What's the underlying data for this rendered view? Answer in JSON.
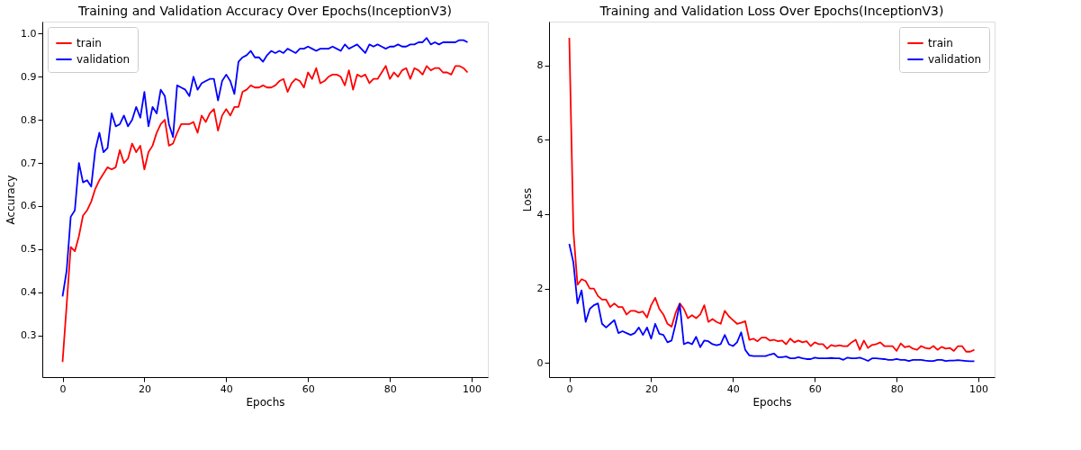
{
  "chart_data": [
    {
      "type": "line",
      "title": "Training and Validation Accuracy Over Epochs(InceptionV3)",
      "xlabel": "Epochs",
      "ylabel": "Accuracy",
      "x": [
        0,
        1,
        2,
        3,
        4,
        5,
        6,
        7,
        8,
        9,
        10,
        11,
        12,
        13,
        14,
        15,
        16,
        17,
        18,
        19,
        20,
        21,
        22,
        23,
        24,
        25,
        26,
        27,
        28,
        29,
        30,
        31,
        32,
        33,
        34,
        35,
        36,
        37,
        38,
        39,
        40,
        41,
        42,
        43,
        44,
        45,
        46,
        47,
        48,
        49,
        50,
        51,
        52,
        53,
        54,
        55,
        56,
        57,
        58,
        59,
        60,
        61,
        62,
        63,
        64,
        65,
        66,
        67,
        68,
        69,
        70,
        71,
        72,
        73,
        74,
        75,
        76,
        77,
        78,
        79,
        80,
        81,
        82,
        83,
        84,
        85,
        86,
        87,
        88,
        89,
        90,
        91,
        92,
        93,
        94,
        95,
        96,
        97,
        98,
        99
      ],
      "series": [
        {
          "name": "train",
          "color": "#ff0000",
          "values": [
            0.238,
            0.37,
            0.505,
            0.495,
            0.53,
            0.578,
            0.59,
            0.61,
            0.64,
            0.66,
            0.675,
            0.69,
            0.685,
            0.69,
            0.73,
            0.7,
            0.71,
            0.745,
            0.725,
            0.74,
            0.685,
            0.725,
            0.74,
            0.77,
            0.79,
            0.8,
            0.74,
            0.745,
            0.77,
            0.79,
            0.79,
            0.79,
            0.795,
            0.77,
            0.81,
            0.795,
            0.815,
            0.825,
            0.775,
            0.81,
            0.825,
            0.81,
            0.83,
            0.83,
            0.865,
            0.87,
            0.88,
            0.875,
            0.875,
            0.88,
            0.875,
            0.875,
            0.88,
            0.89,
            0.895,
            0.865,
            0.885,
            0.895,
            0.89,
            0.875,
            0.91,
            0.895,
            0.92,
            0.885,
            0.89,
            0.9,
            0.905,
            0.905,
            0.9,
            0.88,
            0.915,
            0.87,
            0.905,
            0.9,
            0.905,
            0.885,
            0.895,
            0.895,
            0.91,
            0.925,
            0.895,
            0.91,
            0.9,
            0.915,
            0.92,
            0.895,
            0.92,
            0.915,
            0.905,
            0.925,
            0.915,
            0.92,
            0.92,
            0.91,
            0.91,
            0.905,
            0.925,
            0.925,
            0.92,
            0.91
          ]
        },
        {
          "name": "validation",
          "color": "#0000ff",
          "values": [
            0.39,
            0.45,
            0.575,
            0.59,
            0.7,
            0.655,
            0.66,
            0.645,
            0.73,
            0.77,
            0.725,
            0.735,
            0.815,
            0.785,
            0.79,
            0.81,
            0.785,
            0.8,
            0.83,
            0.805,
            0.865,
            0.785,
            0.83,
            0.815,
            0.87,
            0.855,
            0.79,
            0.76,
            0.88,
            0.875,
            0.87,
            0.855,
            0.9,
            0.87,
            0.885,
            0.89,
            0.895,
            0.895,
            0.845,
            0.89,
            0.905,
            0.89,
            0.86,
            0.935,
            0.945,
            0.95,
            0.96,
            0.945,
            0.945,
            0.935,
            0.95,
            0.96,
            0.955,
            0.96,
            0.955,
            0.965,
            0.96,
            0.955,
            0.965,
            0.965,
            0.97,
            0.965,
            0.96,
            0.965,
            0.965,
            0.965,
            0.97,
            0.965,
            0.96,
            0.975,
            0.965,
            0.97,
            0.975,
            0.965,
            0.955,
            0.975,
            0.97,
            0.975,
            0.97,
            0.965,
            0.97,
            0.97,
            0.975,
            0.97,
            0.97,
            0.975,
            0.975,
            0.98,
            0.98,
            0.99,
            0.975,
            0.98,
            0.975,
            0.98,
            0.98,
            0.98,
            0.98,
            0.985,
            0.985,
            0.98
          ]
        }
      ],
      "xlim": [
        -4.95,
        103.95
      ],
      "xticks": [
        0,
        20,
        40,
        60,
        80,
        100
      ],
      "ylim": [
        0.203,
        1.028
      ],
      "yticks": [
        0.3,
        0.4,
        0.5,
        0.6,
        0.7,
        0.8,
        0.9,
        {
          "value": 1.0,
          "label": "1.0"
        }
      ],
      "grid": false,
      "legend": "top left",
      "line_style": "solid",
      "marker": "none"
    },
    {
      "type": "line",
      "title": "Training and Validation Loss Over Epochs(InceptionV3)",
      "xlabel": "Epochs",
      "ylabel": "Loss",
      "x": [
        0,
        1,
        2,
        3,
        4,
        5,
        6,
        7,
        8,
        9,
        10,
        11,
        12,
        13,
        14,
        15,
        16,
        17,
        18,
        19,
        20,
        21,
        22,
        23,
        24,
        25,
        26,
        27,
        28,
        29,
        30,
        31,
        32,
        33,
        34,
        35,
        36,
        37,
        38,
        39,
        40,
        41,
        42,
        43,
        44,
        45,
        46,
        47,
        48,
        49,
        50,
        51,
        52,
        53,
        54,
        55,
        56,
        57,
        58,
        59,
        60,
        61,
        62,
        63,
        64,
        65,
        66,
        67,
        68,
        69,
        70,
        71,
        72,
        73,
        74,
        75,
        76,
        77,
        78,
        79,
        80,
        81,
        82,
        83,
        84,
        85,
        86,
        87,
        88,
        89,
        90,
        91,
        92,
        93,
        94,
        95,
        96,
        97,
        98,
        99
      ],
      "series": [
        {
          "name": "train",
          "color": "#ff0000",
          "values": [
            8.75,
            3.55,
            2.1,
            2.25,
            2.2,
            2.0,
            2.0,
            1.8,
            1.7,
            1.7,
            1.5,
            1.6,
            1.5,
            1.5,
            1.3,
            1.4,
            1.4,
            1.35,
            1.38,
            1.22,
            1.55,
            1.75,
            1.45,
            1.3,
            1.05,
            0.97,
            1.35,
            1.6,
            1.45,
            1.2,
            1.28,
            1.2,
            1.3,
            1.55,
            1.1,
            1.18,
            1.1,
            1.05,
            1.4,
            1.25,
            1.15,
            1.05,
            1.08,
            1.12,
            0.62,
            0.65,
            0.58,
            0.68,
            0.68,
            0.6,
            0.62,
            0.58,
            0.6,
            0.5,
            0.65,
            0.55,
            0.6,
            0.55,
            0.58,
            0.45,
            0.55,
            0.5,
            0.5,
            0.38,
            0.48,
            0.45,
            0.47,
            0.45,
            0.45,
            0.55,
            0.62,
            0.35,
            0.6,
            0.4,
            0.48,
            0.5,
            0.55,
            0.45,
            0.45,
            0.45,
            0.32,
            0.52,
            0.42,
            0.45,
            0.38,
            0.35,
            0.45,
            0.4,
            0.38,
            0.45,
            0.35,
            0.43,
            0.38,
            0.4,
            0.32,
            0.45,
            0.45,
            0.3,
            0.3,
            0.35
          ]
        },
        {
          "name": "validation",
          "color": "#0000ff",
          "values": [
            3.2,
            2.7,
            1.6,
            1.95,
            1.1,
            1.45,
            1.55,
            1.6,
            1.05,
            0.95,
            1.05,
            1.15,
            0.8,
            0.85,
            0.8,
            0.75,
            0.8,
            0.95,
            0.75,
            0.95,
            0.65,
            1.05,
            0.78,
            0.75,
            0.55,
            0.6,
            1.05,
            1.58,
            0.5,
            0.55,
            0.5,
            0.7,
            0.42,
            0.6,
            0.58,
            0.5,
            0.47,
            0.5,
            0.75,
            0.5,
            0.45,
            0.55,
            0.82,
            0.35,
            0.2,
            0.18,
            0.18,
            0.18,
            0.18,
            0.22,
            0.25,
            0.15,
            0.15,
            0.17,
            0.12,
            0.12,
            0.15,
            0.12,
            0.1,
            0.1,
            0.14,
            0.12,
            0.12,
            0.12,
            0.13,
            0.12,
            0.12,
            0.08,
            0.14,
            0.12,
            0.12,
            0.14,
            0.1,
            0.05,
            0.12,
            0.12,
            0.11,
            0.1,
            0.08,
            0.08,
            0.1,
            0.08,
            0.08,
            0.05,
            0.08,
            0.08,
            0.08,
            0.06,
            0.05,
            0.05,
            0.08,
            0.08,
            0.05,
            0.06,
            0.06,
            0.07,
            0.06,
            0.05,
            0.04,
            0.04
          ]
        }
      ],
      "xlim": [
        -4.95,
        103.95
      ],
      "xticks": [
        0,
        20,
        40,
        60,
        80,
        100
      ],
      "ylim": [
        -0.385,
        9.185
      ],
      "yticks": [
        0,
        2,
        4,
        6,
        8
      ],
      "grid": false,
      "legend": "top right",
      "line_style": "solid",
      "marker": "none"
    }
  ]
}
